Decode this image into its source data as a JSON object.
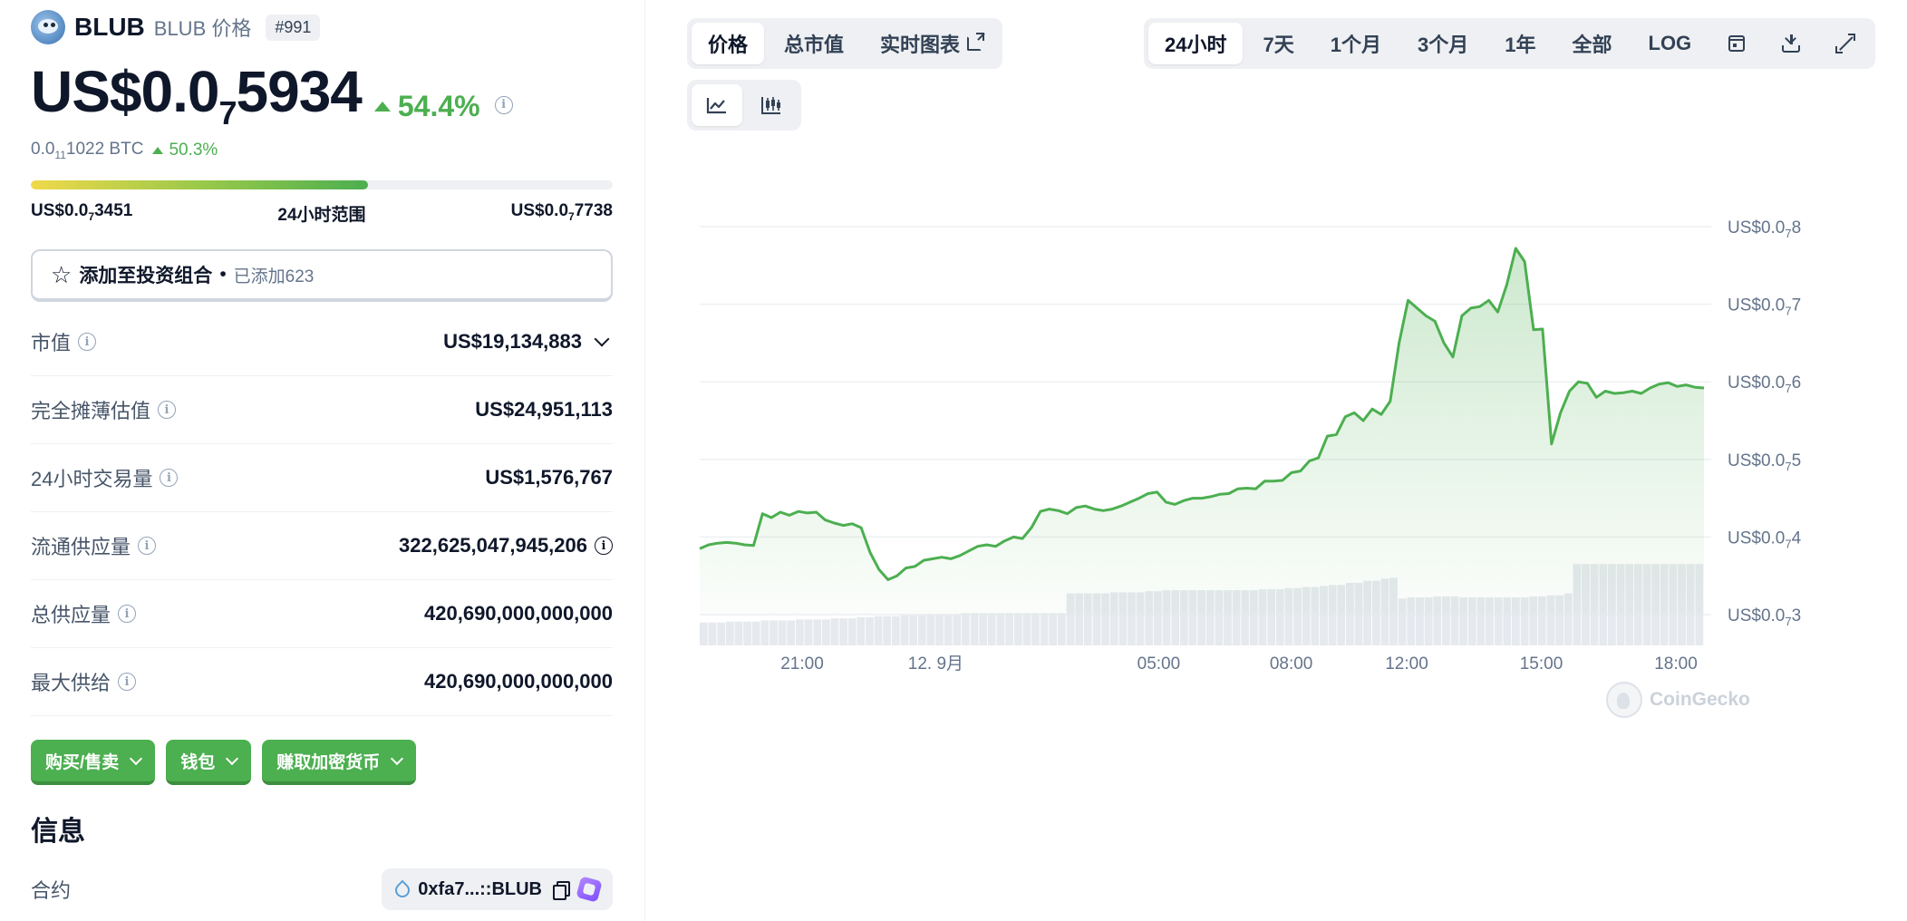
{
  "coin": {
    "symbol": "BLUB",
    "subtitle": "BLUB 价格",
    "rank": "#991"
  },
  "price": {
    "prefix": "US$0.0",
    "zeros_sub": "7",
    "digits": "5934",
    "change_24h": "54.4%",
    "btc_prefix": "0.0",
    "btc_zeros_sub": "11",
    "btc_digits": "1022 BTC",
    "btc_change": "50.3%"
  },
  "range": {
    "low_prefix": "US$0.0",
    "low_sub": "7",
    "low_digits": "3451",
    "label": "24小时范围",
    "high_prefix": "US$0.0",
    "high_sub": "7",
    "high_digits": "7738",
    "position_pct": 58
  },
  "portfolio": {
    "label": "添加至投资组合",
    "dot": "•",
    "added": "已添加623"
  },
  "stats": [
    {
      "label": "市值",
      "value": "US$19,134,883",
      "has_dropdown": true
    },
    {
      "label": "完全摊薄估值",
      "value": "US$24,951,113"
    },
    {
      "label": "24小时交易量",
      "value": "US$1,576,767"
    },
    {
      "label": "流通供应量",
      "value": "322,625,047,945,206",
      "has_info": true
    },
    {
      "label": "总供应量",
      "value": "420,690,000,000,000"
    },
    {
      "label": "最大供给",
      "value": "420,690,000,000,000"
    }
  ],
  "actions": [
    "购买/售卖",
    "钱包",
    "赚取加密货币"
  ],
  "info": {
    "title": "信息",
    "contract_label": "合约",
    "contract_value": "0xfa7...::BLUB"
  },
  "chart_tabs": {
    "metric": [
      "价格",
      "总市值",
      "实时图表"
    ],
    "range": [
      "24小时",
      "7天",
      "1个月",
      "3个月",
      "1年",
      "全部",
      "LOG"
    ],
    "active_metric": 0,
    "active_range": 0
  },
  "colors": {
    "accent_green": "#4caf50",
    "line": "#4caf50",
    "muted": "#64748b"
  },
  "watermark": "CoinGecko",
  "chart_data": {
    "type": "area",
    "x_ticks": [
      "21:00",
      "12. 9月",
      "05:00",
      "08:00",
      "12:00",
      "15:00",
      "18:00"
    ],
    "y_ticks": [
      {
        "prefix": "US$0.0",
        "sub": "7",
        "digits": "8",
        "value": 8
      },
      {
        "prefix": "US$0.0",
        "sub": "7",
        "digits": "7",
        "value": 7
      },
      {
        "prefix": "US$0.0",
        "sub": "7",
        "digits": "6",
        "value": 6
      },
      {
        "prefix": "US$0.0",
        "sub": "7",
        "digits": "5",
        "value": 5
      },
      {
        "prefix": "US$0.0",
        "sub": "7",
        "digits": "4",
        "value": 4
      },
      {
        "prefix": "US$0.0",
        "sub": "7",
        "digits": "3",
        "value": 3
      }
    ],
    "ylim": [
      3,
      8
    ],
    "series_price": [
      3.85,
      3.9,
      3.92,
      3.93,
      3.92,
      3.9,
      3.89,
      4.3,
      4.25,
      4.32,
      4.28,
      4.33,
      4.31,
      4.32,
      4.22,
      4.18,
      4.15,
      4.17,
      4.12,
      3.8,
      3.58,
      3.45,
      3.5,
      3.6,
      3.62,
      3.7,
      3.72,
      3.74,
      3.72,
      3.76,
      3.82,
      3.88,
      3.9,
      3.88,
      3.95,
      4.0,
      3.98,
      4.12,
      4.33,
      4.36,
      4.34,
      4.3,
      4.38,
      4.4,
      4.36,
      4.34,
      4.36,
      4.4,
      4.45,
      4.5,
      4.56,
      4.58,
      4.45,
      4.42,
      4.47,
      4.5,
      4.5,
      4.52,
      4.55,
      4.56,
      4.62,
      4.63,
      4.62,
      4.72,
      4.72,
      4.73,
      4.83,
      4.85,
      4.98,
      5.02,
      5.3,
      5.32,
      5.55,
      5.6,
      5.5,
      5.65,
      5.58,
      5.75,
      6.5,
      7.05,
      6.95,
      6.85,
      6.78,
      6.5,
      6.32,
      6.85,
      6.95,
      6.97,
      7.05,
      6.9,
      7.25,
      7.72,
      7.55,
      6.67,
      6.68,
      5.2,
      5.6,
      5.88,
      6.0,
      5.98,
      5.8,
      5.88,
      5.85,
      5.86,
      5.88,
      5.85,
      5.92,
      5.97,
      5.99,
      5.94,
      5.96,
      5.93,
      5.92
    ],
    "series_volume": [
      0.22,
      0.22,
      0.22,
      0.23,
      0.23,
      0.23,
      0.23,
      0.24,
      0.24,
      0.24,
      0.24,
      0.25,
      0.25,
      0.25,
      0.25,
      0.26,
      0.26,
      0.26,
      0.27,
      0.27,
      0.28,
      0.28,
      0.28,
      0.29,
      0.29,
      0.29,
      0.3,
      0.3,
      0.3,
      0.3,
      0.31,
      0.31,
      0.31,
      0.31,
      0.31,
      0.31,
      0.31,
      0.31,
      0.31,
      0.31,
      0.31,
      0.31,
      0.5,
      0.5,
      0.5,
      0.5,
      0.5,
      0.51,
      0.51,
      0.51,
      0.51,
      0.52,
      0.52,
      0.53,
      0.53,
      0.53,
      0.53,
      0.53,
      0.53,
      0.53,
      0.53,
      0.53,
      0.53,
      0.53,
      0.54,
      0.54,
      0.54,
      0.55,
      0.55,
      0.56,
      0.56,
      0.57,
      0.58,
      0.58,
      0.6,
      0.6,
      0.62,
      0.62,
      0.64,
      0.65,
      0.45,
      0.46,
      0.46,
      0.46,
      0.47,
      0.47,
      0.47,
      0.46,
      0.46,
      0.46,
      0.46,
      0.46,
      0.46,
      0.46,
      0.46,
      0.47,
      0.47,
      0.48,
      0.48,
      0.5,
      0.78,
      0.78,
      0.78,
      0.78,
      0.78,
      0.78,
      0.78,
      0.78,
      0.78,
      0.78,
      0.78,
      0.78,
      0.78,
      0.78,
      0.78
    ]
  }
}
